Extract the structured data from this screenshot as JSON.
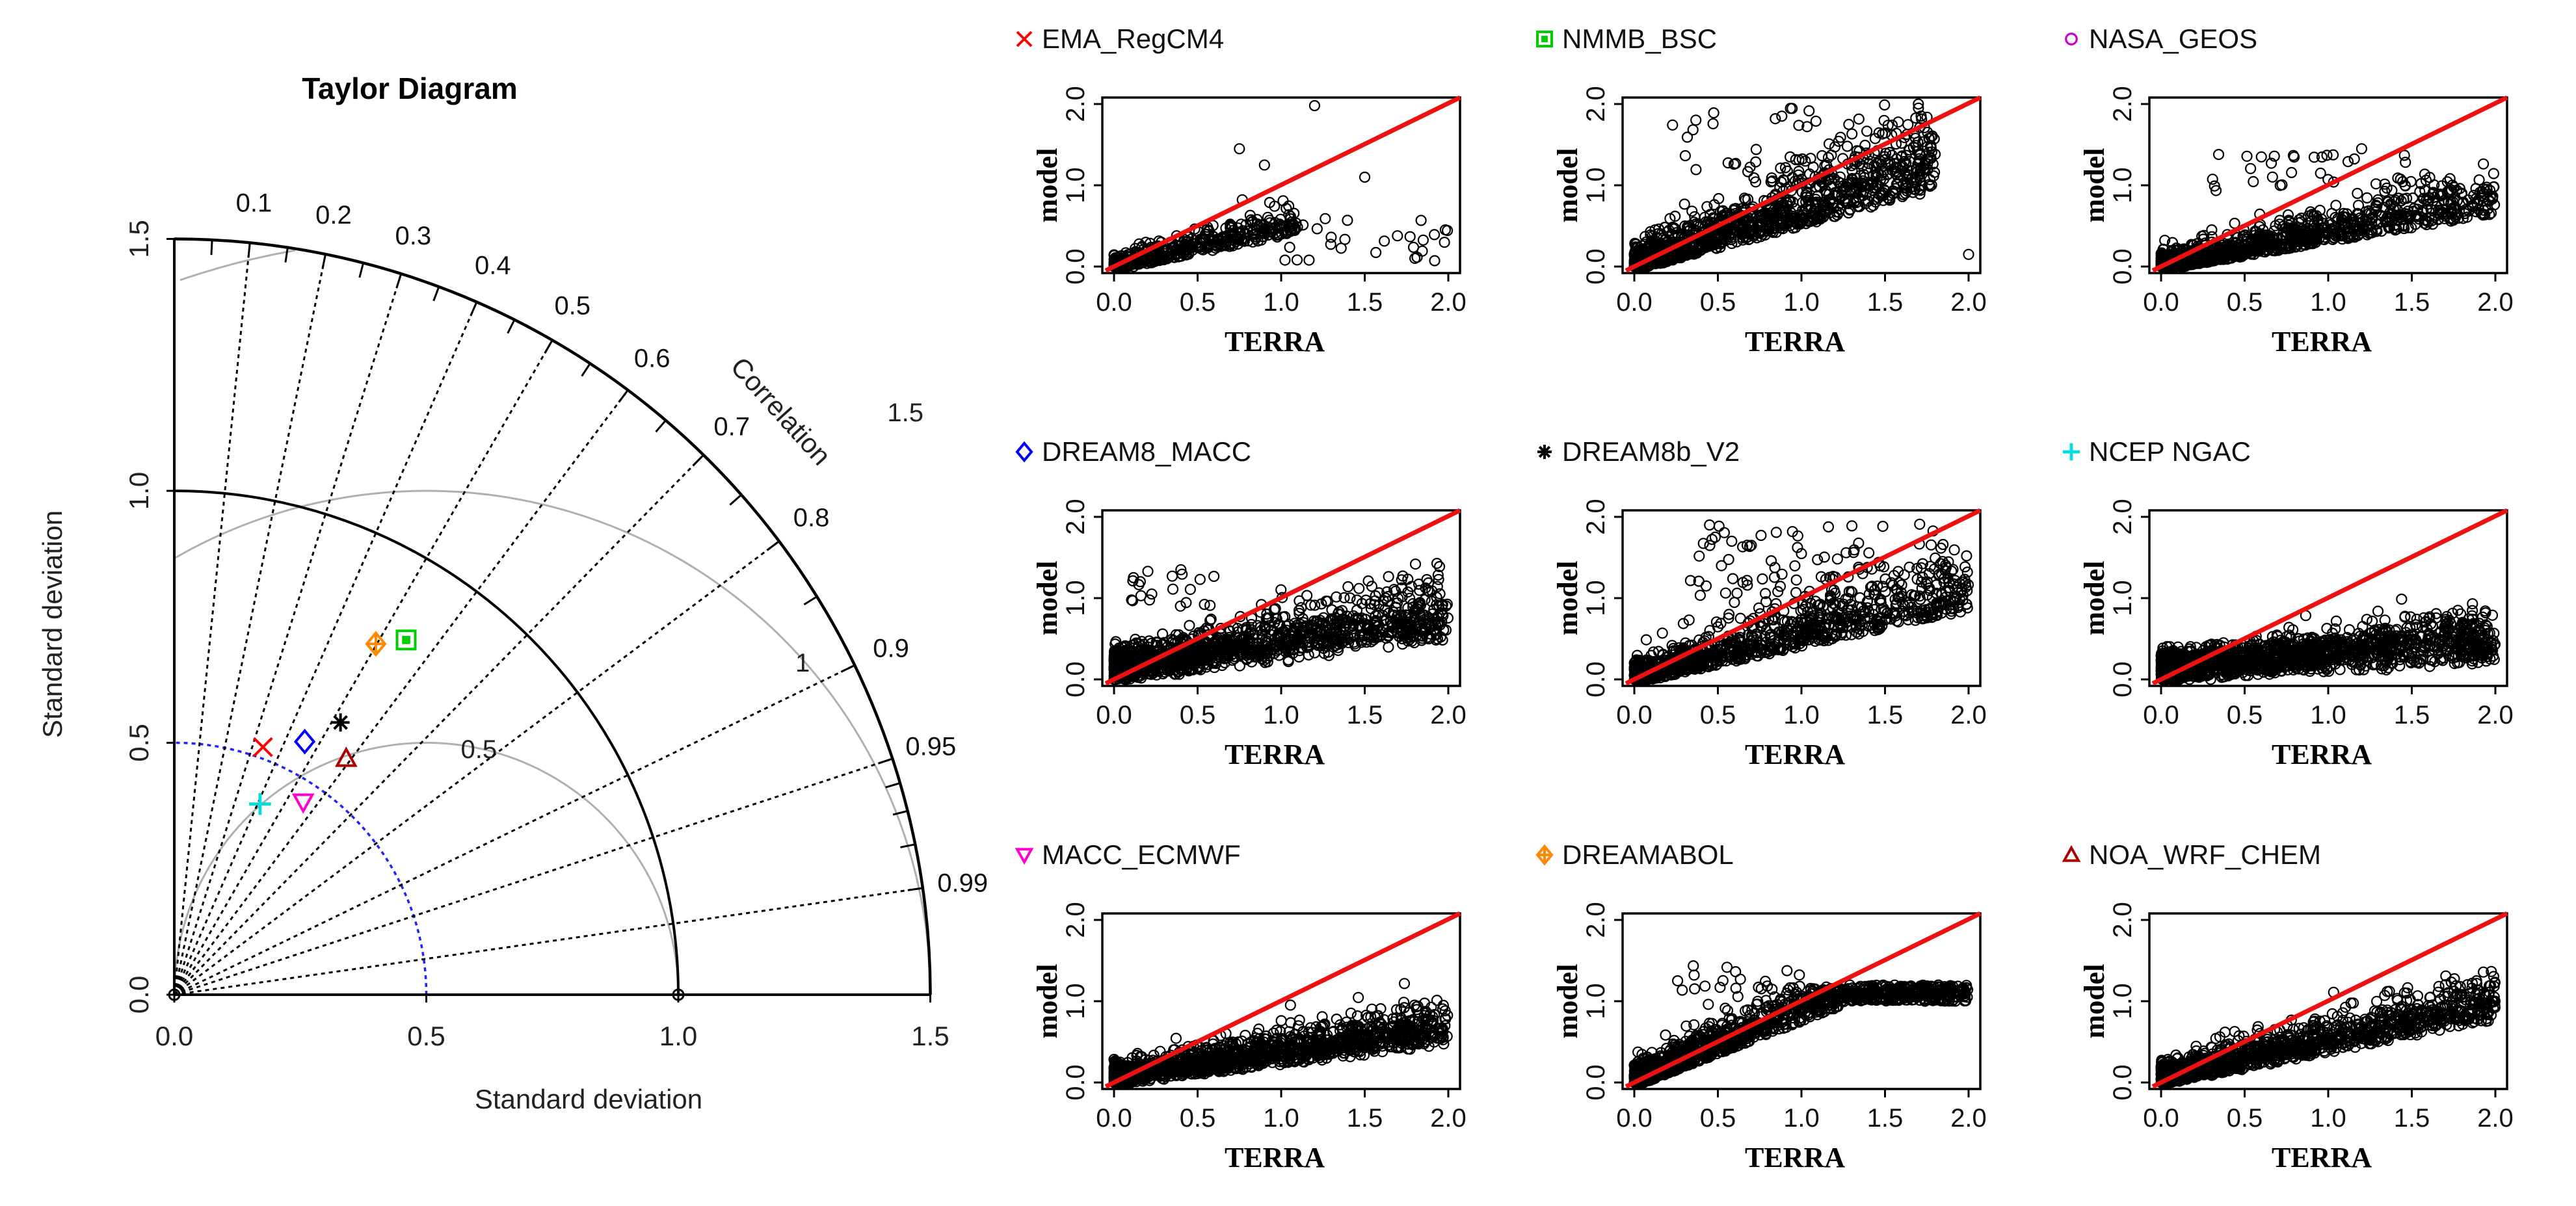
{
  "colors": {
    "background": "#ffffff",
    "axis": "#000000",
    "ref_arc": "#0000ff",
    "rms_arc": "#bebebe",
    "identity_line": "#ff0000"
  },
  "chart_data": [
    {
      "type": "scatter",
      "subtype": "taylor-diagram",
      "title": "Taylor Diagram",
      "xlabel": "Standard deviation",
      "ylabel": "Standard deviation",
      "corr_label": "Correlation",
      "sd_range": [
        0,
        1.5
      ],
      "sd_ticks": [
        "0.0",
        "0.5",
        "1.0",
        "1.5"
      ],
      "corr_ticks": [
        "0.1",
        "0.2",
        "0.3",
        "0.4",
        "0.5",
        "0.6",
        "0.7",
        "0.8",
        "0.9",
        "0.95",
        "0.99"
      ],
      "rms_contours": [
        {
          "value": 0.5,
          "label": "0.5"
        },
        {
          "value": 1.0,
          "label": "1"
        },
        {
          "value": 1.5,
          "label": "1.5"
        }
      ],
      "reference_sd": 0.5,
      "points": [
        {
          "name": "EMA_RegCM4",
          "sd": 0.522,
          "corr": 0.337,
          "symbol": "x",
          "color": "#ff0000"
        },
        {
          "name": "NMMB_BSC",
          "sd": 0.841,
          "corr": 0.547,
          "symbol": "square",
          "color": "#00cc00"
        },
        {
          "name": "NASA_GEOS",
          "sd": 0.0,
          "corr": 1.0,
          "symbol": "circle",
          "color": "#cc00cc"
        },
        {
          "name": "DREAM8_MACC",
          "sd": 0.565,
          "corr": 0.458,
          "symbol": "diamond",
          "color": "#0000ff"
        },
        {
          "name": "DREAM8b_V2",
          "sd": 0.633,
          "corr": 0.521,
          "symbol": "asterisk",
          "color": "#000000"
        },
        {
          "name": "NCEP_NGAC",
          "sd": 0.415,
          "corr": 0.41,
          "symbol": "plus",
          "color": "#00dddd"
        },
        {
          "name": "MACC_ECMWF",
          "sd": 0.46,
          "corr": 0.556,
          "symbol": "triangle-down",
          "color": "#ff00cc"
        },
        {
          "name": "DREAMABOL",
          "sd": 0.803,
          "corr": 0.498,
          "symbol": "crossed-diamond",
          "color": "#ff8800"
        },
        {
          "name": "NOA_WRF_CHEM",
          "sd": 0.58,
          "corr": 0.588,
          "symbol": "triangle-up",
          "color": "#aa0000"
        }
      ]
    },
    {
      "type": "scatter",
      "title": "EMA_RegCM4",
      "symbol": "x",
      "symbol_color": "#ff0000",
      "xlabel": "TERRA",
      "ylabel": "model",
      "xlim": [
        0,
        2
      ],
      "ylim": [
        0,
        2
      ],
      "xticks": [
        "0.0",
        "0.5",
        "1.0",
        "1.5",
        "2.0"
      ],
      "yticks": [
        "0.0",
        "1.0",
        "2.0"
      ],
      "pattern": {
        "n": 420,
        "slope": 0.42,
        "spread": 0.18,
        "xmax": 1.1,
        "tail": 28,
        "tailx": [
          1.0,
          2.0
        ],
        "taily": [
          0.0,
          0.6
        ],
        "outliers": [
          [
            1.2,
            1.98
          ],
          [
            0.75,
            1.45
          ],
          [
            1.5,
            1.1
          ],
          [
            0.9,
            1.25
          ]
        ]
      }
    },
    {
      "type": "scatter",
      "title": "NMMB_BSC",
      "symbol": "square",
      "symbol_color": "#00cc00",
      "xlabel": "TERRA",
      "ylabel": "model",
      "xlim": [
        0,
        2
      ],
      "ylim": [
        0,
        2
      ],
      "xticks": [
        "0.0",
        "0.5",
        "1.0",
        "1.5",
        "2.0"
      ],
      "yticks": [
        "0.0",
        "1.0",
        "2.0"
      ],
      "pattern": {
        "n": 1100,
        "slope": 0.55,
        "spread": 0.32,
        "xmax": 1.8,
        "tail": 60,
        "tailx": [
          0.2,
          1.8
        ],
        "taily": [
          1.0,
          2.0
        ],
        "outliers": [
          [
            1.7,
            1.95
          ],
          [
            2.0,
            0.15
          ]
        ]
      }
    },
    {
      "type": "scatter",
      "title": "NASA_GEOS",
      "symbol": "circle",
      "symbol_color": "#cc00cc",
      "xlabel": "TERRA",
      "ylabel": "model",
      "xlim": [
        0,
        2
      ],
      "ylim": [
        0,
        2
      ],
      "xticks": [
        "0.0",
        "0.5",
        "1.0",
        "1.5",
        "2.0"
      ],
      "yticks": [
        "0.0",
        "1.0",
        "2.0"
      ],
      "pattern": {
        "n": 1000,
        "slope": 0.35,
        "spread": 0.2,
        "xmax": 2.0,
        "tail": 30,
        "tailx": [
          0.3,
          1.5
        ],
        "taily": [
          0.9,
          1.4
        ],
        "outliers": [
          [
            1.2,
            1.45
          ],
          [
            0.6,
            1.35
          ]
        ]
      }
    },
    {
      "type": "scatter",
      "title": "DREAM8_MACC",
      "symbol": "diamond",
      "symbol_color": "#0000ff",
      "xlabel": "TERRA",
      "ylabel": "model",
      "xlim": [
        0,
        2
      ],
      "ylim": [
        0,
        2
      ],
      "xticks": [
        "0.0",
        "0.5",
        "1.0",
        "1.5",
        "2.0"
      ],
      "yticks": [
        "0.0",
        "1.0",
        "2.0"
      ],
      "pattern": {
        "n": 1300,
        "slope": 0.25,
        "spread": 0.22,
        "xmax": 2.0,
        "base": 0.25,
        "tail": 20,
        "tailx": [
          0.1,
          0.6
        ],
        "taily": [
          0.9,
          1.35
        ],
        "outliers": [
          [
            0.4,
            1.35
          ]
        ]
      }
    },
    {
      "type": "scatter",
      "title": "DREAM8b_V2",
      "symbol": "asterisk",
      "symbol_color": "#000000",
      "xlabel": "TERRA",
      "ylabel": "model",
      "xlim": [
        0,
        2
      ],
      "ylim": [
        0,
        2
      ],
      "xticks": [
        "0.0",
        "0.5",
        "1.0",
        "1.5",
        "2.0"
      ],
      "yticks": [
        "0.0",
        "1.0",
        "2.0"
      ],
      "pattern": {
        "n": 1000,
        "slope": 0.45,
        "spread": 0.28,
        "xmax": 2.0,
        "tail": 70,
        "tailx": [
          0.3,
          1.5
        ],
        "taily": [
          0.9,
          1.9
        ],
        "outliers": [
          [
            0.45,
            1.9
          ],
          [
            0.7,
            1.65
          ]
        ]
      }
    },
    {
      "type": "scatter",
      "title": "NCEP  NGAC",
      "symbol": "plus",
      "symbol_color": "#00dddd",
      "xlabel": "TERRA",
      "ylabel": "model",
      "xlim": [
        0,
        2
      ],
      "ylim": [
        0,
        2
      ],
      "xticks": [
        "0.0",
        "0.5",
        "1.0",
        "1.5",
        "2.0"
      ],
      "yticks": [
        "0.0",
        "1.0",
        "2.0"
      ],
      "pattern": {
        "n": 1500,
        "slope": 0.12,
        "spread": 0.15,
        "xmax": 2.0,
        "base": 0.28,
        "tail": 0,
        "tailx": [
          0,
          0
        ],
        "taily": [
          0,
          0
        ],
        "outliers": []
      }
    },
    {
      "type": "scatter",
      "title": "MACC_ECMWF",
      "symbol": "triangle-down",
      "symbol_color": "#ff00cc",
      "xlabel": "TERRA",
      "ylabel": "model",
      "xlim": [
        0,
        2
      ],
      "ylim": [
        0,
        2
      ],
      "xticks": [
        "0.0",
        "0.5",
        "1.0",
        "1.5",
        "2.0"
      ],
      "yticks": [
        "0.0",
        "1.0",
        "2.0"
      ],
      "pattern": {
        "n": 1400,
        "slope": 0.25,
        "spread": 0.17,
        "xmax": 2.0,
        "base": 0.12,
        "tail": 0,
        "tailx": [
          0,
          0
        ],
        "taily": [
          0,
          0
        ],
        "outliers": []
      }
    },
    {
      "type": "scatter",
      "title": "DREAMABOL",
      "symbol": "crossed-diamond",
      "symbol_color": "#ff8800",
      "xlabel": "TERRA",
      "ylabel": "model",
      "xlim": [
        0,
        2
      ],
      "ylim": [
        0,
        2
      ],
      "xticks": [
        "0.0",
        "0.5",
        "1.0",
        "1.5",
        "2.0"
      ],
      "yticks": [
        "0.0",
        "1.0",
        "2.0"
      ],
      "pattern": {
        "n": 1300,
        "slope": 0.8,
        "spread": 0.25,
        "xmax": 2.0,
        "cap": 1.0,
        "tail": 20,
        "tailx": [
          0.2,
          1.0
        ],
        "taily": [
          1.1,
          1.45
        ],
        "outliers": []
      }
    },
    {
      "type": "scatter",
      "title": "NOA_WRF_CHEM",
      "symbol": "triangle-up",
      "symbol_color": "#aa0000",
      "xlabel": "TERRA",
      "ylabel": "model",
      "xlim": [
        0,
        2
      ],
      "ylim": [
        0,
        2
      ],
      "xticks": [
        "0.0",
        "0.5",
        "1.0",
        "1.5",
        "2.0"
      ],
      "yticks": [
        "0.0",
        "1.0",
        "2.0"
      ],
      "pattern": {
        "n": 1300,
        "slope": 0.4,
        "spread": 0.2,
        "xmax": 2.0,
        "base": 0.1,
        "cap": 1.2,
        "tail": 0,
        "tailx": [
          0,
          0
        ],
        "taily": [
          0,
          0
        ],
        "outliers": []
      }
    }
  ]
}
